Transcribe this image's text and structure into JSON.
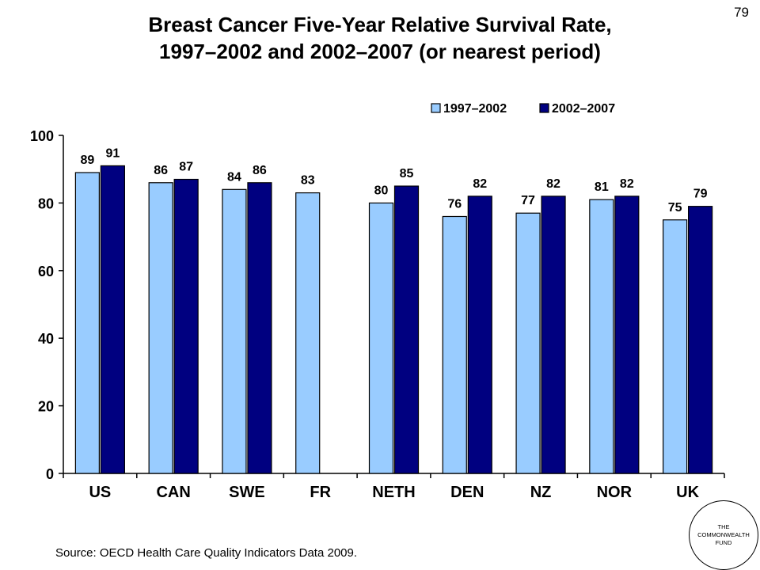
{
  "page_number": "79",
  "title_line1": "Breast Cancer Five-Year Relative Survival Rate,",
  "title_line2": "1997–2002 and 2002–2007 (or nearest period)",
  "source": "Source: OECD Health Care Quality Indicators Data 2009.",
  "logo": {
    "line1": "THE",
    "line2": "COMMONWEALTH",
    "line3": "FUND"
  },
  "colors": {
    "series1": "#99CCFF",
    "series2": "#000080"
  },
  "chart_data": {
    "type": "bar",
    "categories": [
      "US",
      "CAN",
      "SWE",
      "FR",
      "NETH",
      "DEN",
      "NZ",
      "NOR",
      "UK"
    ],
    "series": [
      {
        "name": "1997–2002",
        "values": [
          89,
          86,
          84,
          83,
          80,
          76,
          77,
          81,
          75
        ],
        "labels": [
          "89",
          "86",
          "84",
          "83",
          "80",
          "76",
          "77",
          "81",
          "75"
        ]
      },
      {
        "name": "2002–2007",
        "values": [
          91,
          87,
          86,
          null,
          85,
          82,
          82,
          82,
          79
        ],
        "labels": [
          "91",
          "87",
          "86",
          "",
          "85",
          "82",
          "82",
          "82",
          "79"
        ]
      }
    ],
    "ylim": [
      0,
      100
    ],
    "yticks": [
      0,
      20,
      40,
      60,
      80,
      100
    ],
    "ytick_labels": [
      "0",
      "20",
      "40",
      "60",
      "80",
      "100"
    ],
    "legend": "top-right",
    "grid": false
  }
}
